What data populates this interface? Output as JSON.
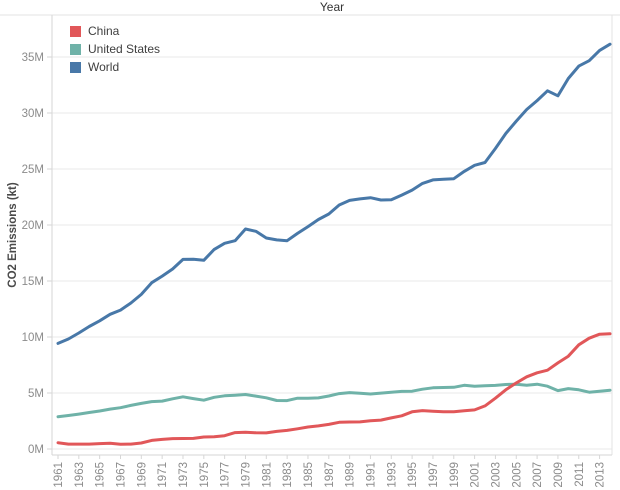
{
  "chart_data": {
    "type": "line",
    "title": "Year",
    "xlabel": "Year",
    "ylabel": "CO2 Emissions (kt)",
    "value_unit_label": "M",
    "grid": "horizontal",
    "legend_position": "inside-top-left",
    "ylim": [
      0,
      36.6
    ],
    "ytick_values": [
      0,
      5,
      10,
      15,
      20,
      25,
      30,
      35
    ],
    "yticks": [
      "0M",
      "5M",
      "10M",
      "15M",
      "20M",
      "25M",
      "30M",
      "35M"
    ],
    "xticks": [
      1961,
      1963,
      1965,
      1967,
      1969,
      1971,
      1973,
      1975,
      1977,
      1979,
      1981,
      1983,
      1985,
      1987,
      1989,
      1991,
      1993,
      1995,
      1997,
      1999,
      2001,
      2003,
      2005,
      2007,
      2009,
      2011,
      2013
    ],
    "x": [
      1961,
      1962,
      1963,
      1964,
      1965,
      1966,
      1967,
      1968,
      1969,
      1970,
      1971,
      1972,
      1973,
      1974,
      1975,
      1976,
      1977,
      1978,
      1979,
      1980,
      1981,
      1982,
      1983,
      1984,
      1985,
      1986,
      1987,
      1988,
      1989,
      1990,
      1991,
      1992,
      1993,
      1994,
      1995,
      1996,
      1997,
      1998,
      1999,
      2000,
      2001,
      2002,
      2003,
      2004,
      2005,
      2006,
      2007,
      2008,
      2009,
      2010,
      2011,
      2012,
      2013,
      2014
    ],
    "series": [
      {
        "name": "China",
        "color": "#e15759",
        "values": [
          0.55,
          0.44,
          0.44,
          0.44,
          0.48,
          0.52,
          0.43,
          0.44,
          0.54,
          0.77,
          0.86,
          0.93,
          0.94,
          0.95,
          1.07,
          1.1,
          1.19,
          1.46,
          1.5,
          1.45,
          1.44,
          1.57,
          1.66,
          1.8,
          1.96,
          2.06,
          2.2,
          2.38,
          2.41,
          2.42,
          2.52,
          2.58,
          2.78,
          2.96,
          3.32,
          3.43,
          3.37,
          3.32,
          3.32,
          3.41,
          3.49,
          3.85,
          4.54,
          5.29,
          5.9,
          6.45,
          6.8,
          7.04,
          7.69,
          8.29,
          9.3,
          9.89,
          10.25,
          10.29
        ]
      },
      {
        "name": "United States",
        "color": "#6fb2a8",
        "values": [
          2.88,
          2.99,
          3.12,
          3.26,
          3.39,
          3.56,
          3.69,
          3.89,
          4.07,
          4.23,
          4.28,
          4.48,
          4.66,
          4.5,
          4.36,
          4.62,
          4.75,
          4.8,
          4.87,
          4.72,
          4.57,
          4.33,
          4.32,
          4.54,
          4.54,
          4.56,
          4.73,
          4.95,
          5.04,
          4.98,
          4.91,
          4.99,
          5.06,
          5.14,
          5.16,
          5.34,
          5.46,
          5.49,
          5.51,
          5.69,
          5.6,
          5.64,
          5.68,
          5.76,
          5.79,
          5.7,
          5.79,
          5.61,
          5.21,
          5.39,
          5.29,
          5.07,
          5.16,
          5.25
        ]
      },
      {
        "name": "World",
        "color": "#4878a8",
        "values": [
          9.43,
          9.82,
          10.36,
          10.94,
          11.45,
          12.03,
          12.4,
          13.04,
          13.8,
          14.85,
          15.44,
          16.07,
          16.93,
          16.94,
          16.85,
          17.82,
          18.37,
          18.6,
          19.64,
          19.44,
          18.84,
          18.67,
          18.6,
          19.25,
          19.86,
          20.49,
          20.98,
          21.79,
          22.2,
          22.33,
          22.44,
          22.23,
          22.25,
          22.67,
          23.12,
          23.71,
          24.03,
          24.08,
          24.13,
          24.79,
          25.33,
          25.58,
          26.83,
          28.17,
          29.28,
          30.31,
          31.11,
          31.98,
          31.54,
          33.08,
          34.19,
          34.67,
          35.59,
          36.14
        ]
      }
    ]
  }
}
